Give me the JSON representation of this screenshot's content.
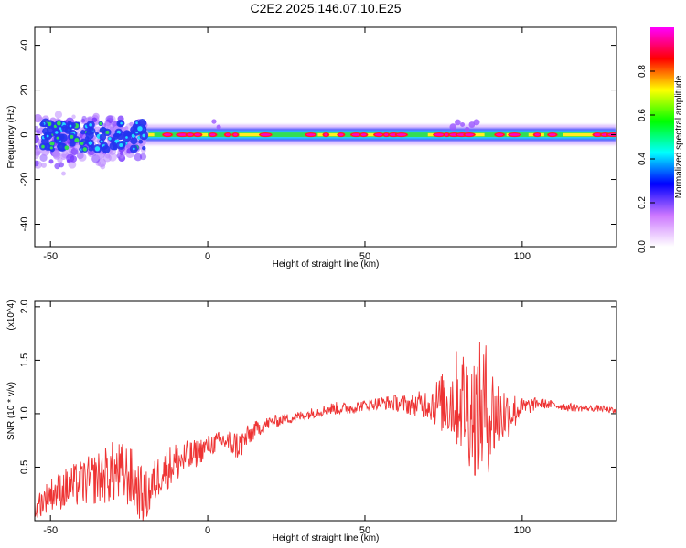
{
  "title": "C2E2.2025.146.07.10.E25",
  "chart_data": [
    {
      "type": "heatmap",
      "title": "C2E2.2025.146.07.10.E25",
      "xlabel": "Height of straight line (km)",
      "ylabel": "Frequency (Hz)",
      "xlim": [
        -55,
        130
      ],
      "ylim": [
        -50,
        48
      ],
      "x_ticks": [
        -50,
        0,
        50,
        100
      ],
      "y_ticks": [
        -40,
        -20,
        0,
        20,
        40
      ],
      "colorbar": {
        "label": "Normalized spectral amplitude",
        "range": [
          0,
          1
        ],
        "ticks": [
          "0.0",
          "0.2",
          "0.4",
          "0.6",
          "0.8"
        ],
        "colors": [
          "#ffffff",
          "#cc77ff",
          "#0000ff",
          "#00ffff",
          "#00ff00",
          "#ffff00",
          "#ff0000",
          "#ff00ff"
        ]
      },
      "ridge": {
        "center_freq_hz": 0,
        "dense_segments_km": [
          -22,
          -17,
          -5,
          0,
          10,
          18,
          35,
          42,
          50,
          60,
          70,
          78,
          82,
          88,
          95,
          98,
          102,
          107,
          113,
          130
        ],
        "scatter_region_km": [
          -55,
          -20
        ],
        "scatter_region_freq_hz": [
          -20,
          12
        ]
      }
    },
    {
      "type": "line",
      "xlabel": "Height of straight line (km)",
      "ylabel": "SNR (10 * v/v)",
      "y_multiplier": "(x10^4)",
      "xlim": [
        -55,
        130
      ],
      "ylim": [
        0,
        2.05
      ],
      "x_ticks": [
        -50,
        0,
        50,
        100
      ],
      "y_ticks": [
        "0.5",
        "1.0",
        "1.5",
        "2.0"
      ],
      "color": "#ee3333",
      "x": [
        -55,
        -50,
        -45,
        -40,
        -35,
        -30,
        -25,
        -20,
        -15,
        -10,
        -5,
        0,
        5,
        10,
        15,
        20,
        25,
        30,
        35,
        40,
        45,
        50,
        55,
        60,
        65,
        70,
        75,
        80,
        85,
        88,
        90,
        95,
        100,
        105,
        110,
        115,
        120,
        125,
        130
      ],
      "y": [
        0.12,
        0.25,
        0.3,
        0.35,
        0.4,
        0.45,
        0.42,
        0.2,
        0.45,
        0.55,
        0.6,
        0.7,
        0.75,
        0.7,
        0.85,
        0.92,
        0.95,
        0.98,
        1.02,
        1.05,
        1.05,
        1.08,
        1.1,
        1.1,
        1.08,
        1.1,
        1.1,
        1.15,
        1.0,
        1.05,
        1.0,
        1.0,
        1.05,
        1.1,
        1.08,
        1.06,
        1.05,
        1.05,
        1.02
      ],
      "fluctuation": [
        0.12,
        0.15,
        0.2,
        0.22,
        0.25,
        0.3,
        0.3,
        0.25,
        0.2,
        0.2,
        0.15,
        0.1,
        0.1,
        0.15,
        0.08,
        0.06,
        0.05,
        0.05,
        0.05,
        0.06,
        0.06,
        0.05,
        0.06,
        0.08,
        0.1,
        0.15,
        0.3,
        0.5,
        0.6,
        0.7,
        0.5,
        0.25,
        0.1,
        0.05,
        0.04,
        0.04,
        0.03,
        0.03,
        0.03
      ]
    }
  ]
}
